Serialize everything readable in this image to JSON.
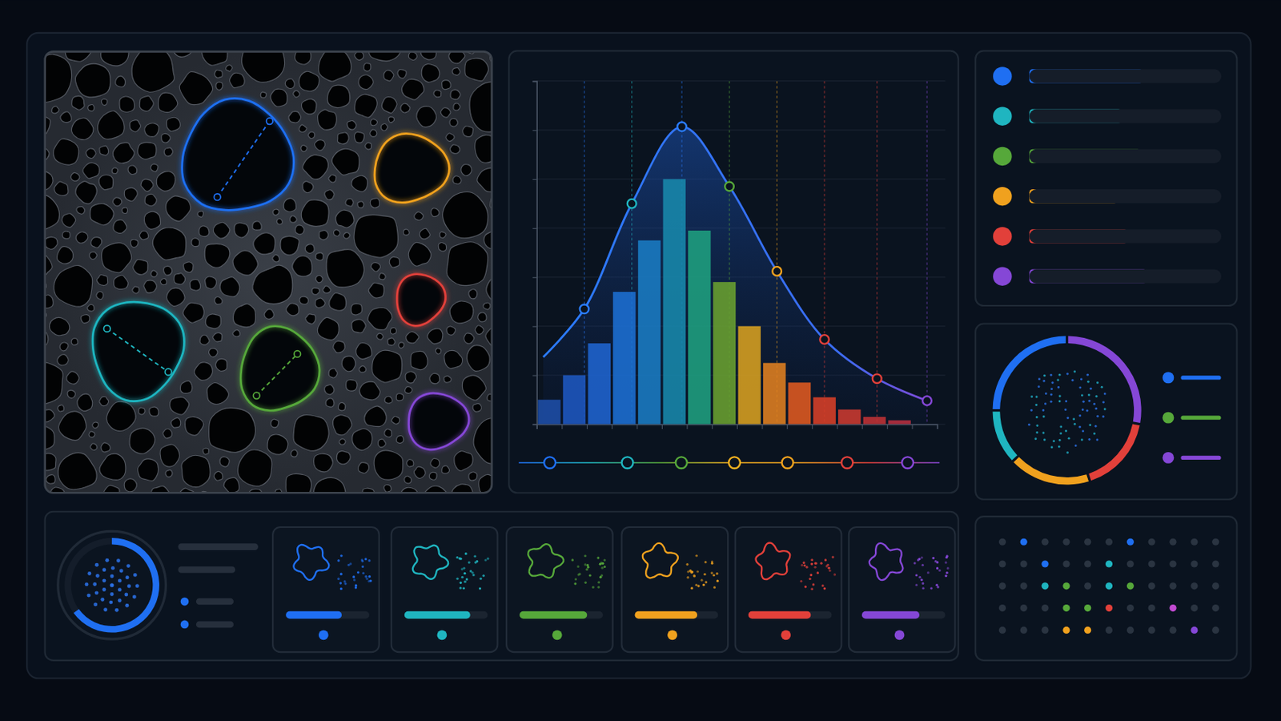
{
  "chart_data": [
    {
      "type": "histogram",
      "bins": [
        0,
        1,
        2,
        3,
        4,
        5,
        6,
        7,
        8,
        9,
        10,
        11,
        12,
        13,
        14,
        15
      ],
      "values": [
        0.5,
        1.0,
        1.65,
        2.7,
        3.75,
        5.0,
        3.95,
        2.9,
        2.0,
        1.25,
        0.85,
        0.55,
        0.3,
        0.15,
        0.08
      ],
      "colors": [
        "#1e4fa8",
        "#1e58c0",
        "#1f64d0",
        "#1d6fd4",
        "#1a7cc4",
        "#1889ac",
        "#1fa080",
        "#6aa030",
        "#d8a020",
        "#e08020",
        "#e05a20",
        "#d84028",
        "#cc3a30",
        "#c03236",
        "#b83040"
      ],
      "xlim": [
        0,
        16
      ],
      "xticks": [
        0,
        1,
        2,
        3,
        4,
        5,
        6,
        7,
        8,
        9,
        10,
        11,
        12,
        13,
        14,
        15,
        16
      ],
      "ylim": [
        0,
        7
      ],
      "yticks": [
        0,
        1,
        2,
        3,
        4,
        5,
        6,
        7
      ],
      "grid": true,
      "tick_labels": false
    },
    {
      "type": "line",
      "x": [
        0.26,
        1.9,
        3.8,
        5.8,
        7.7,
        9.6,
        11.5,
        13.6,
        15.6
      ],
      "values": [
        1.37,
        2.35,
        4.5,
        6.07,
        4.85,
        3.12,
        1.73,
        0.93,
        0.48
      ],
      "colors": [
        null,
        "#2a7cff",
        "#1fb5c0",
        "#2a7cff",
        "#56a83a",
        "#f0a11e",
        "#e2403a",
        "#e2403a",
        "#8547d6"
      ],
      "xlim": [
        0,
        16
      ],
      "ylim": [
        0,
        7
      ],
      "marker": "circle",
      "line_style": "solid",
      "tick_labels": false
    },
    {
      "type": "bar",
      "orientation": "horizontal",
      "categories": [
        null,
        null,
        null,
        null,
        null,
        null
      ],
      "values": [
        59,
        48,
        58,
        46,
        51,
        61
      ],
      "colors": [
        "#1f6ff2",
        "#1fb5c0",
        "#56a83a",
        "#f0a11e",
        "#e2403a",
        "#8547d6"
      ],
      "xlim": [
        0,
        100
      ],
      "tick_labels": false
    },
    {
      "type": "pie",
      "categories": [
        null,
        null,
        null,
        null,
        null
      ],
      "values": [
        28,
        17,
        18,
        12,
        25
      ],
      "colors": [
        "#8547d6",
        "#e2403a",
        "#f0a11e",
        "#1fb5c0",
        "#1f6ff2"
      ]
    },
    {
      "type": "gauge",
      "values": [
        65
      ],
      "ylim": [
        0,
        100
      ],
      "color": "#1f6ff2"
    },
    {
      "type": "bar",
      "orientation": "horizontal",
      "categories": [
        null,
        null,
        null,
        null,
        null,
        null
      ],
      "values": [
        67,
        79,
        81,
        75,
        75,
        69
      ],
      "colors": [
        "#1f6ff2",
        "#1fb5c0",
        "#56a83a",
        "#f0a11e",
        "#e2403a",
        "#8547d6"
      ],
      "xlim": [
        0,
        100
      ],
      "tick_labels": false
    }
  ]
}
